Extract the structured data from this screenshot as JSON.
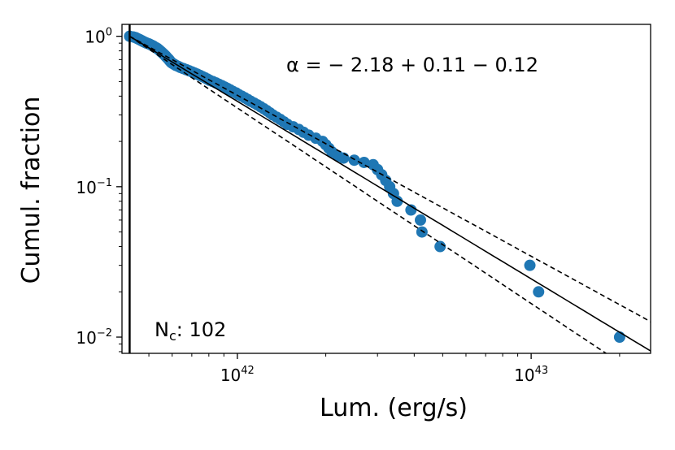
{
  "chart_data": {
    "type": "scatter",
    "xlabel": "Lum.  (erg/s)",
    "ylabel": "Cumul.  fraction",
    "xscale": "log",
    "yscale": "log",
    "xlim": [
      4.05e+41,
      2.55e+43
    ],
    "ylim": [
      0.0078,
      1.2
    ],
    "grid": false,
    "x_ticks": [
      {
        "base": "10",
        "exp": "42",
        "value": 1e+42
      },
      {
        "base": "10",
        "exp": "43",
        "value": 1e+43
      }
    ],
    "y_ticks": [
      {
        "base": "10",
        "exp": "0",
        "value": 1
      },
      {
        "base": "10",
        "exp": "−1",
        "value": 0.1
      },
      {
        "base": "10",
        "exp": "−2",
        "value": 0.01
      }
    ],
    "annotations": {
      "alpha": "α = − 2.18  + 0.11  − 0.12",
      "nc_label": "N",
      "nc_sub": "c",
      "nc_value": ":  102"
    },
    "threshold_x": 4.3e+41,
    "fit": {
      "alpha": -2.18,
      "alpha_upper": -2.07,
      "alpha_lower": -2.3,
      "x0": 4.3e+41,
      "y0": 1.0
    },
    "marker_color": "#1f77b4",
    "points": [
      [
        4.3e+41,
        1.0
      ],
      [
        4.42e+41,
        0.99
      ],
      [
        4.5e+41,
        0.98
      ],
      [
        4.55e+41,
        0.97
      ],
      [
        4.6e+41,
        0.96
      ],
      [
        4.65e+41,
        0.95
      ],
      [
        4.7e+41,
        0.94
      ],
      [
        4.75e+41,
        0.93
      ],
      [
        4.8e+41,
        0.92
      ],
      [
        4.86e+41,
        0.91
      ],
      [
        4.92e+41,
        0.9
      ],
      [
        5e+41,
        0.89
      ],
      [
        5.06e+41,
        0.88
      ],
      [
        5.12e+41,
        0.87
      ],
      [
        5.18e+41,
        0.86
      ],
      [
        5.22e+41,
        0.85
      ],
      [
        5.28e+41,
        0.84
      ],
      [
        5.34e+41,
        0.83
      ],
      [
        5.38e+41,
        0.82
      ],
      [
        5.42e+41,
        0.81
      ],
      [
        5.46e+41,
        0.8
      ],
      [
        5.5e+41,
        0.79
      ],
      [
        5.54e+41,
        0.78
      ],
      [
        5.58e+41,
        0.77
      ],
      [
        5.62e+41,
        0.76
      ],
      [
        5.66e+41,
        0.75
      ],
      [
        5.7e+41,
        0.74
      ],
      [
        5.73e+41,
        0.73
      ],
      [
        5.77e+41,
        0.72
      ],
      [
        5.81e+41,
        0.71
      ],
      [
        5.85e+41,
        0.7
      ],
      [
        5.88e+41,
        0.69
      ],
      [
        5.92e+41,
        0.68
      ],
      [
        5.96e+41,
        0.67
      ],
      [
        6.02e+41,
        0.66
      ],
      [
        6.1e+41,
        0.65
      ],
      [
        6.18e+41,
        0.64
      ],
      [
        6.3e+41,
        0.63
      ],
      [
        6.4e+41,
        0.62
      ],
      [
        6.55e+41,
        0.61
      ],
      [
        6.7e+41,
        0.6
      ],
      [
        6.85e+41,
        0.59
      ],
      [
        7e+41,
        0.58
      ],
      [
        7.15e+41,
        0.57
      ],
      [
        7.3e+41,
        0.56
      ],
      [
        7.45e+41,
        0.55
      ],
      [
        7.6e+41,
        0.54
      ],
      [
        7.75e+41,
        0.53
      ],
      [
        7.9e+41,
        0.52
      ],
      [
        8.05e+41,
        0.51
      ],
      [
        8.25e+41,
        0.5
      ],
      [
        8.45e+41,
        0.49
      ],
      [
        8.65e+41,
        0.48
      ],
      [
        8.85e+41,
        0.47
      ],
      [
        9.05e+41,
        0.46
      ],
      [
        9.25e+41,
        0.45
      ],
      [
        9.45e+41,
        0.44
      ],
      [
        9.65e+41,
        0.43
      ],
      [
        9.9e+41,
        0.42
      ],
      [
        1.01e+42,
        0.41
      ],
      [
        1.035e+42,
        0.4
      ],
      [
        1.06e+42,
        0.39
      ],
      [
        1.085e+42,
        0.38
      ],
      [
        1.11e+42,
        0.37
      ],
      [
        1.14e+42,
        0.36
      ],
      [
        1.17e+42,
        0.35
      ],
      [
        1.2e+42,
        0.34
      ],
      [
        1.23e+42,
        0.33
      ],
      [
        1.26e+42,
        0.32
      ],
      [
        1.29e+42,
        0.31
      ],
      [
        1.32e+42,
        0.3
      ],
      [
        1.36e+42,
        0.29
      ],
      [
        1.4e+42,
        0.28
      ],
      [
        1.44e+42,
        0.27
      ],
      [
        1.48e+42,
        0.26
      ],
      [
        1.55e+42,
        0.25
      ],
      [
        1.62e+42,
        0.24
      ],
      [
        1.68e+42,
        0.23
      ],
      [
        1.75e+42,
        0.22
      ],
      [
        1.85e+42,
        0.21
      ],
      [
        1.95e+42,
        0.2
      ],
      [
        2e+42,
        0.19
      ],
      [
        2.05e+42,
        0.18
      ],
      [
        2.1e+42,
        0.17
      ],
      [
        2.2e+42,
        0.16
      ],
      [
        2.3e+42,
        0.155
      ],
      [
        2.5e+42,
        0.15
      ],
      [
        2.7e+42,
        0.145
      ],
      [
        2.9e+42,
        0.14
      ],
      [
        3e+42,
        0.13
      ],
      [
        3.1e+42,
        0.12
      ],
      [
        3.2e+42,
        0.11
      ],
      [
        3.3e+42,
        0.1
      ],
      [
        3.4e+42,
        0.09
      ],
      [
        3.5e+42,
        0.08
      ],
      [
        3.9e+42,
        0.07
      ],
      [
        4.2e+42,
        0.06
      ],
      [
        4.25e+42,
        0.05
      ],
      [
        4.9e+42,
        0.04
      ],
      [
        9.9e+42,
        0.03
      ],
      [
        1.06e+43,
        0.02
      ],
      [
        2e+43,
        0.01
      ]
    ]
  }
}
